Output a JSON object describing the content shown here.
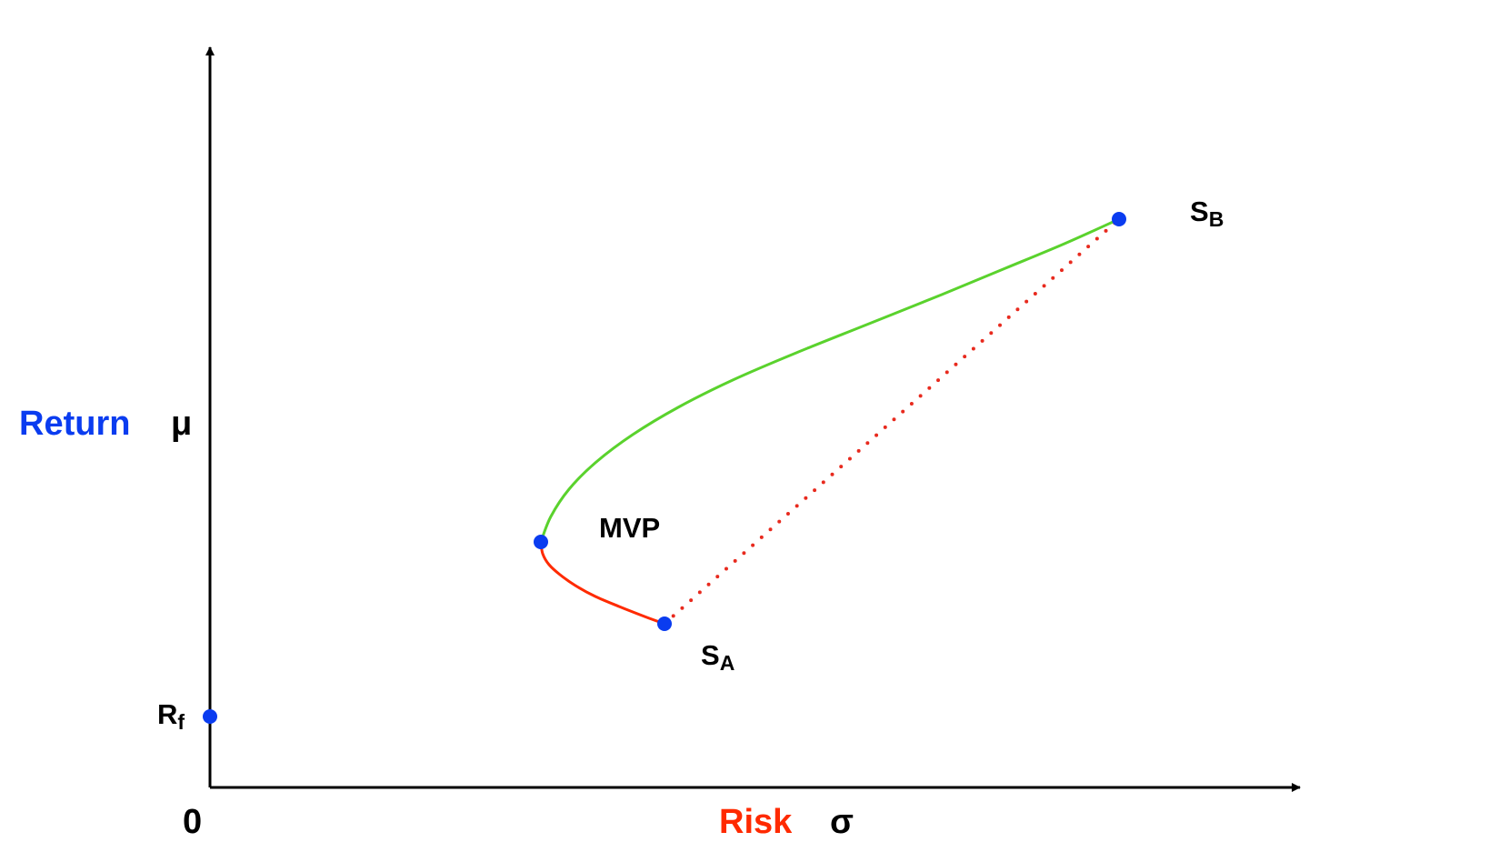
{
  "chart_data": {
    "type": "line",
    "title": "",
    "origin_label": "0",
    "xlabel": {
      "word": "Risk",
      "symbol": "σ",
      "color": "#ff2a00"
    },
    "ylabel": {
      "word": "Return",
      "symbol": "μ",
      "color": "#0a3cf0"
    },
    "grid": false,
    "legend": "none",
    "xlim": [
      0,
      1100
    ],
    "ylim": [
      0,
      750
    ],
    "colors": {
      "efficient": "#5ad22d",
      "inefficient": "#ff2a00",
      "chord": "#e82a1e",
      "point": "#0a3cf0",
      "axis": "#000000",
      "label": "#000000"
    },
    "points": [
      {
        "id": "rf",
        "label": "R",
        "sub": "f",
        "x": 0,
        "y": 78
      },
      {
        "id": "sa",
        "label": "S",
        "sub": "A",
        "x": 500,
        "y": 180
      },
      {
        "id": "mvp",
        "label": "MVP",
        "sub": "",
        "x": 364,
        "y": 270
      },
      {
        "id": "sb",
        "label": "S",
        "sub": "B",
        "x": 1000,
        "y": 625
      }
    ],
    "series": [
      {
        "segment": "inefficient-frontier",
        "x": [
          364,
          366,
          373,
          385,
          402,
          424,
          450,
          478,
          500
        ],
        "y": [
          270,
          257,
          245,
          234,
          222,
          210,
          199,
          188,
          180
        ]
      },
      {
        "segment": "efficient-frontier",
        "x": [
          364,
          375,
          395,
          425,
          465,
          515,
          575,
          645,
          725,
          805,
          875,
          940,
          1000
        ],
        "y": [
          270,
          298,
          328,
          358,
          388,
          418,
          448,
          478,
          510,
          542,
          571,
          598,
          625
        ]
      },
      {
        "segment": "straight-combination",
        "x": [
          500,
          1000
        ],
        "y": [
          180,
          625
        ]
      }
    ]
  }
}
